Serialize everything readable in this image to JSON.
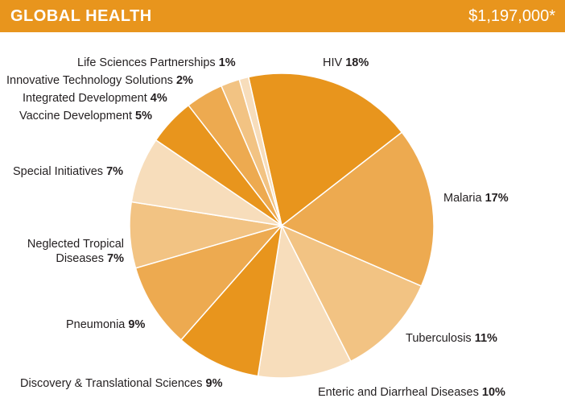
{
  "header": {
    "title": "GLOBAL HEALTH",
    "total": "$1,197,000*"
  },
  "chart_data": {
    "type": "pie",
    "title": "GLOBAL HEALTH",
    "total": "$1,197,000*",
    "slices": [
      {
        "label": "HIV",
        "pct_label": "18%",
        "value": 18,
        "color": "#e8951d"
      },
      {
        "label": "Malaria",
        "pct_label": "17%",
        "value": 17,
        "color": "#edaa50"
      },
      {
        "label": "Tuberculosis",
        "pct_label": "11%",
        "value": 11,
        "color": "#f2c383"
      },
      {
        "label": "Enteric and Diarrheal Diseases",
        "pct_label": "10%",
        "value": 10,
        "color": "#f7ddbb"
      },
      {
        "label": "Discovery & Translational Sciences",
        "pct_label": "9%",
        "value": 9,
        "color": "#e8951d"
      },
      {
        "label": "Pneumonia",
        "pct_label": "9%",
        "value": 9,
        "color": "#edaa50"
      },
      {
        "label": "Neglected Tropical Diseases",
        "label_lines": [
          "Neglected Tropical",
          "Diseases"
        ],
        "pct_label": "7%",
        "value": 7,
        "color": "#f2c383"
      },
      {
        "label": "Special Initiatives",
        "pct_label": "7%",
        "value": 7,
        "color": "#f7ddbb"
      },
      {
        "label": "Vaccine Development",
        "pct_label": "5%",
        "value": 5,
        "color": "#e8951d"
      },
      {
        "label": "Integrated Development",
        "pct_label": "4%",
        "value": 4,
        "color": "#edaa50"
      },
      {
        "label": "Innovative Technology Solutions",
        "pct_label": "2%",
        "value": 2,
        "color": "#f2c383"
      },
      {
        "label": "Life Sciences Partnerships",
        "pct_label": "1%",
        "value": 1,
        "color": "#f7ddbb"
      }
    ]
  }
}
